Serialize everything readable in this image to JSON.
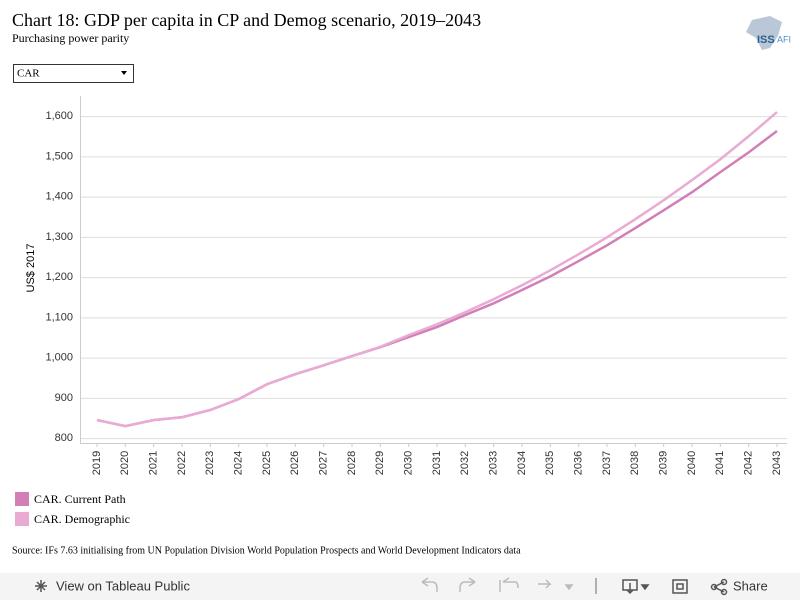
{
  "chart_data": {
    "type": "line",
    "title": "Chart 18: GDP per capita in CP and Demog scenario, 2019–2043",
    "subtitle": "Purchasing power parity",
    "y_label": "US$ 2017",
    "source": "Source: IFs 7.63 initialising from UN Population Division World Population Prospects and World Development Indicators data",
    "categories": [
      "2019",
      "2020",
      "2021",
      "2022",
      "2023",
      "2024",
      "2025",
      "2026",
      "2027",
      "2028",
      "2029",
      "2030",
      "2031",
      "2032",
      "2033",
      "2034",
      "2035",
      "2036",
      "2037",
      "2038",
      "2039",
      "2040",
      "2041",
      "2042",
      "2043"
    ],
    "series": [
      {
        "name": "CAR. Current Path",
        "color": "#d27fb8",
        "values": [
          845,
          830,
          845,
          852,
          870,
          897,
          934,
          959,
          981,
          1004,
          1026,
          1051,
          1076,
          1106,
          1135,
          1168,
          1202,
          1240,
          1279,
          1322,
          1366,
          1411,
          1461,
          1510,
          1563
        ]
      },
      {
        "name": "CAR. Demographic",
        "color": "#e9aad4",
        "values": [
          845,
          830,
          845,
          852,
          870,
          897,
          934,
          959,
          981,
          1004,
          1027,
          1056,
          1083,
          1113,
          1145,
          1180,
          1217,
          1257,
          1299,
          1344,
          1391,
          1441,
          1493,
          1550,
          1610
        ]
      }
    ],
    "ylim": [
      788,
      1650
    ],
    "yticks": [
      800,
      900,
      {
        "value": 1000,
        "label": "1,000"
      },
      {
        "value": 1100,
        "label": "1,100"
      },
      {
        "value": 1200,
        "label": "1,200"
      },
      {
        "value": 1300,
        "label": "1,300"
      },
      {
        "value": 1400,
        "label": "1,400"
      },
      {
        "value": 1500,
        "label": "1,500"
      },
      {
        "value": 1600,
        "label": "1,600"
      }
    ],
    "grid": true
  },
  "filter": {
    "selected": "CAR"
  },
  "logo": {
    "main": "ISS",
    "suffix": "AFI"
  },
  "toolbar": {
    "view": "View on Tableau Public",
    "share": "Share"
  }
}
